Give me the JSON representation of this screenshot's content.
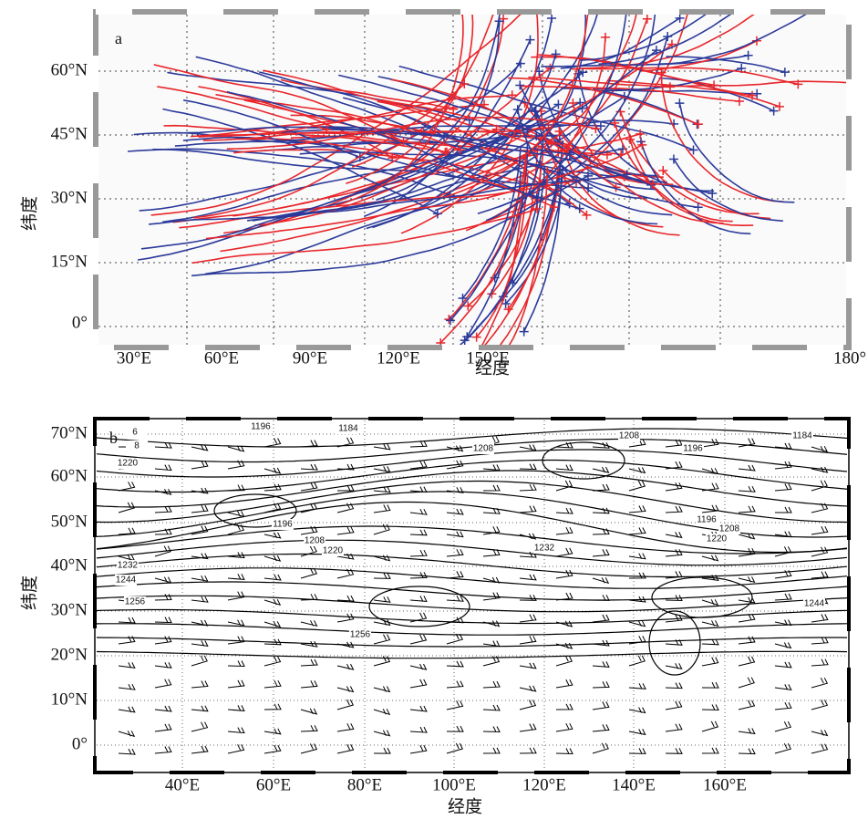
{
  "panels": [
    {
      "label": "a",
      "x_ticks": [
        "30°E",
        "60°E",
        "90°E",
        "120°E",
        "150°E",
        "180°"
      ],
      "y_ticks": [
        "60°N",
        "45°N",
        "30°N",
        "15°N",
        "0°"
      ],
      "x_axis_label": "经度",
      "y_axis_label": "纬度"
    },
    {
      "label": "b",
      "x_ticks": [
        "40°E",
        "60°E",
        "80°E",
        "100°E",
        "120°E",
        "140°E",
        "160°E"
      ],
      "y_ticks": [
        "70°N",
        "60°N",
        "50°N",
        "40°N",
        "30°N",
        "20°N",
        "10°N",
        "0°"
      ],
      "x_axis_label": "经度",
      "y_axis_label": "纬度",
      "contour_labels": [
        1196,
        1184,
        1208,
        1208,
        1196,
        1184,
        6,
        8,
        1220,
        1196,
        1208,
        1220,
        1232,
        1196,
        1208,
        1220,
        1232,
        1244,
        1256,
        1256,
        1244
      ]
    }
  ]
}
